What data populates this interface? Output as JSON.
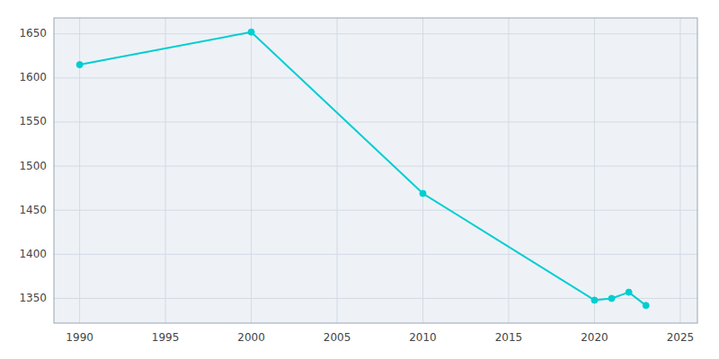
{
  "chart_data": {
    "type": "line",
    "x": [
      1990,
      2000,
      2010,
      2020,
      2021,
      2022,
      2023
    ],
    "values": [
      1615,
      1652,
      1469,
      1348,
      1350,
      1357,
      1342
    ],
    "color": "#00CED1",
    "marker": "circle",
    "xlim": [
      1988.5,
      2026
    ],
    "ylim": [
      1322,
      1668
    ],
    "xticks": [
      1990,
      1995,
      2000,
      2005,
      2010,
      2015,
      2020,
      2025
    ],
    "yticks": [
      1350,
      1400,
      1450,
      1500,
      1550,
      1600,
      1650
    ],
    "grid": true
  }
}
